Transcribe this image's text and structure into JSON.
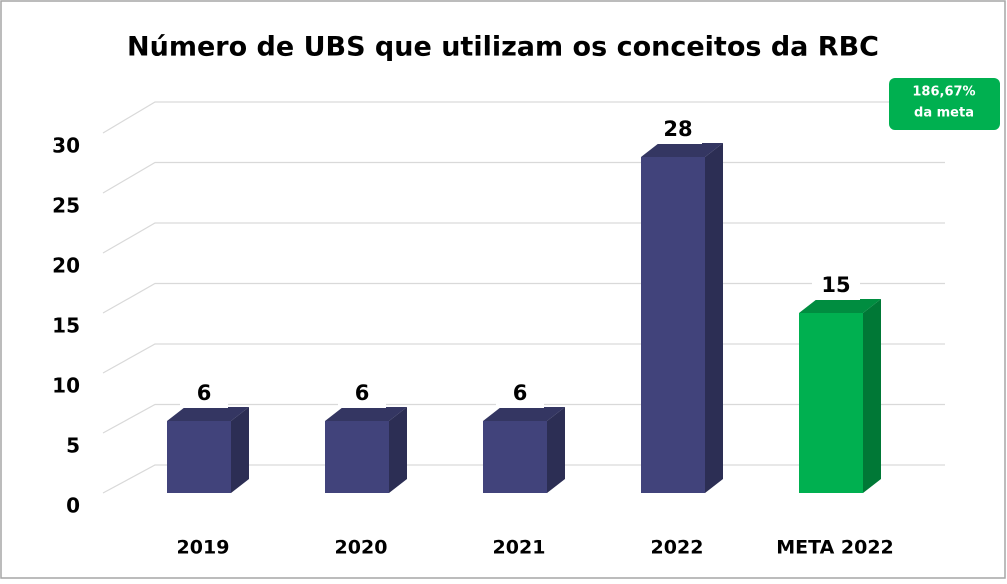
{
  "chart_data": {
    "type": "bar3d",
    "title": "Número de UBS que utilizam os conceitos da RBC",
    "categories": [
      "2019",
      "2020",
      "2021",
      "2022",
      "META 2022"
    ],
    "values": [
      6,
      6,
      6,
      28,
      15
    ],
    "colors": [
      "#41437b",
      "#41437b",
      "#41437b",
      "#41437b",
      "#00b050"
    ],
    "ylim": [
      0,
      30
    ],
    "yticks": [
      0,
      5,
      10,
      15,
      20,
      25,
      30
    ],
    "grid": true,
    "annotation": [
      "186,67%",
      "da meta"
    ],
    "annotation_color": "#00b050"
  }
}
